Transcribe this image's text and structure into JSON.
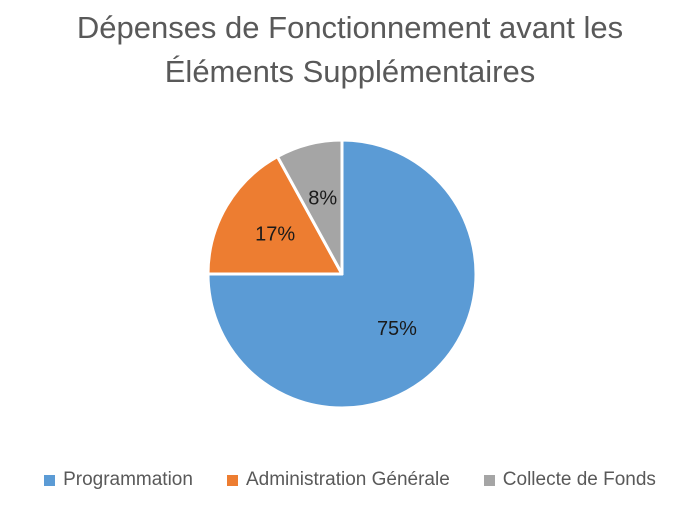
{
  "chart_data": {
    "type": "pie",
    "title_lines": [
      "Dépenses de Fonctionnement avant les",
      "Éléments Supplémentaires"
    ],
    "categories": [
      "Programmation",
      "Administration Générale",
      "Collecte de Fonds"
    ],
    "values": [
      75,
      17,
      8
    ],
    "value_labels": [
      "75%",
      "17%",
      "8%"
    ],
    "colors": [
      "#5B9BD5",
      "#ED7D31",
      "#A5A5A5"
    ],
    "legend_position": "bottom"
  }
}
